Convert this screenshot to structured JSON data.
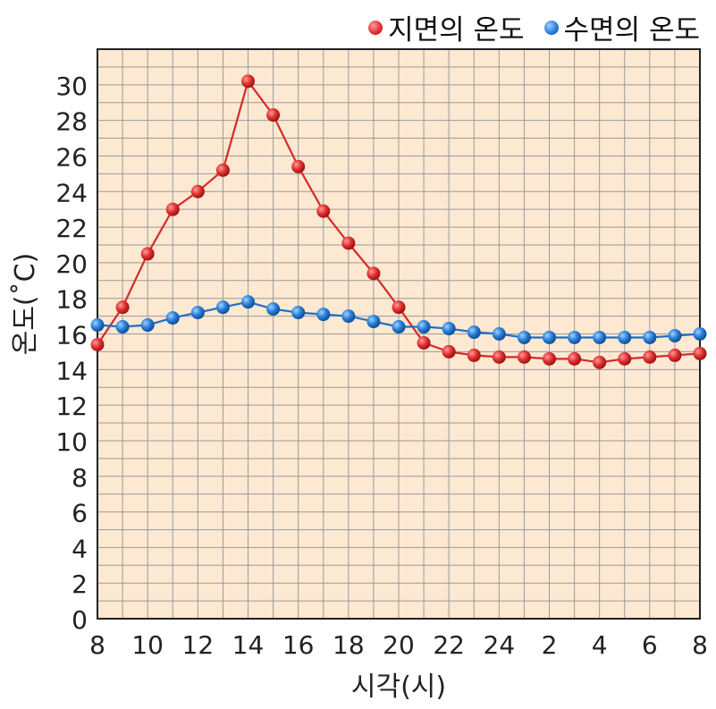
{
  "chart_data": {
    "type": "line",
    "xlabel": "시각(시)",
    "ylabel": "온도(˚C)",
    "x": [
      "8",
      "9",
      "10",
      "11",
      "12",
      "13",
      "14",
      "15",
      "16",
      "17",
      "18",
      "19",
      "20",
      "21",
      "22",
      "23",
      "24",
      "1",
      "2",
      "3",
      "4",
      "5",
      "6",
      "7",
      "8"
    ],
    "x_tick_labels": [
      "8",
      "10",
      "12",
      "14",
      "16",
      "18",
      "20",
      "22",
      "24",
      "2",
      "4",
      "6",
      "8"
    ],
    "ylim": [
      0,
      32
    ],
    "y_ticks": [
      0,
      2,
      4,
      6,
      8,
      10,
      12,
      14,
      16,
      18,
      20,
      22,
      24,
      26,
      28,
      30
    ],
    "grid": true,
    "legend_position": "top-right",
    "series": [
      {
        "name": "지면의 온도",
        "color": "#d42a2a",
        "values": [
          15.4,
          17.5,
          20.5,
          23.0,
          24.0,
          25.2,
          30.2,
          28.3,
          25.4,
          22.9,
          21.1,
          19.4,
          17.5,
          15.5,
          15.0,
          14.8,
          14.7,
          14.7,
          14.6,
          14.6,
          14.4,
          14.6,
          14.7,
          14.8,
          14.9
        ]
      },
      {
        "name": "수면의 온도",
        "color": "#1f6fc4",
        "values": [
          16.5,
          16.4,
          16.5,
          16.9,
          17.2,
          17.5,
          17.8,
          17.4,
          17.2,
          17.1,
          17.0,
          16.7,
          16.4,
          16.4,
          16.3,
          16.1,
          16.0,
          15.8,
          15.8,
          15.8,
          15.8,
          15.8,
          15.8,
          15.9,
          16.0
        ]
      }
    ]
  }
}
